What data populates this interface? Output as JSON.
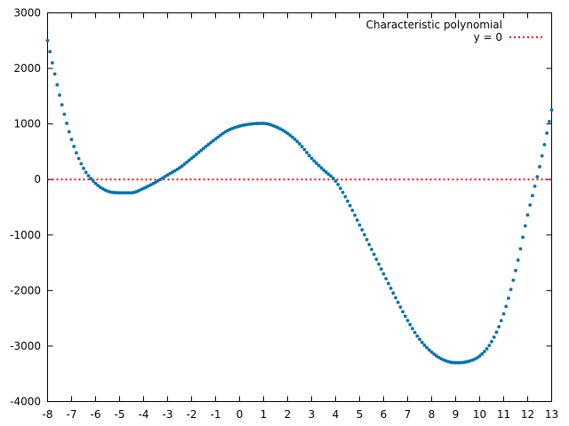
{
  "chart_data": {
    "type": "scatter",
    "title": "",
    "xlabel": "",
    "ylabel": "",
    "xlim": [
      -8,
      13
    ],
    "ylim": [
      -4000,
      3000
    ],
    "x_ticks": [
      -8,
      -7,
      -6,
      -5,
      -4,
      -3,
      -2,
      -1,
      0,
      1,
      2,
      3,
      4,
      5,
      6,
      7,
      8,
      9,
      10,
      11,
      12,
      13
    ],
    "y_ticks": [
      -4000,
      -3000,
      -2000,
      -1000,
      0,
      1000,
      2000,
      3000
    ],
    "grid": false,
    "legend_position": "top-right",
    "series": [
      {
        "name": "Characteristic polynomial",
        "style": "points",
        "color": "#0072b2",
        "x": [
          -8,
          -7.5,
          -7,
          -6.5,
          -6,
          -5.5,
          -5,
          -4.5,
          -4,
          -3.5,
          -3,
          -2.5,
          -2,
          -1.5,
          -1,
          -0.5,
          0,
          0.5,
          1,
          1.5,
          2,
          2.5,
          3,
          3.5,
          4,
          4.5,
          5,
          5.5,
          6,
          6.5,
          7,
          7.5,
          8,
          8.5,
          9,
          9.5,
          10,
          10.5,
          11,
          11.5,
          12,
          12.5,
          13
        ],
        "y": [
          2500,
          1520,
          720,
          200,
          -70,
          -210,
          -240,
          -240,
          -160,
          -50,
          80,
          210,
          380,
          560,
          730,
          880,
          960,
          1000,
          1010,
          950,
          830,
          640,
          380,
          170,
          -30,
          -390,
          -820,
          -1260,
          -1700,
          -2130,
          -2540,
          -2880,
          -3110,
          -3250,
          -3300,
          -3280,
          -3180,
          -2920,
          -2420,
          -1640,
          -640,
          230,
          1250
        ]
      },
      {
        "name": "y = 0",
        "style": "dotted-line",
        "color": "#ff0000",
        "x": [
          -8,
          13
        ],
        "y": [
          0,
          0
        ]
      }
    ]
  }
}
